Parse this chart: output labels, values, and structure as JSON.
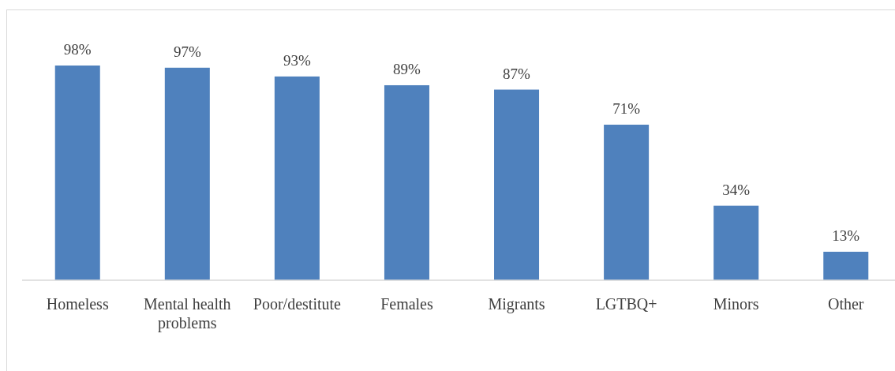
{
  "chart_data": {
    "type": "bar",
    "categories": [
      "Homeless",
      "Mental health problems",
      "Poor/destitute",
      "Females",
      "Migrants",
      "LGTBQ+",
      "Minors",
      "Other"
    ],
    "values": [
      98,
      97,
      93,
      89,
      87,
      71,
      34,
      13
    ],
    "color": "#4f81bd",
    "data_labels": true,
    "value_labels": [
      "98%",
      "97%",
      "93%",
      "89%",
      "87%",
      "71%",
      "34%",
      "13%"
    ]
  }
}
